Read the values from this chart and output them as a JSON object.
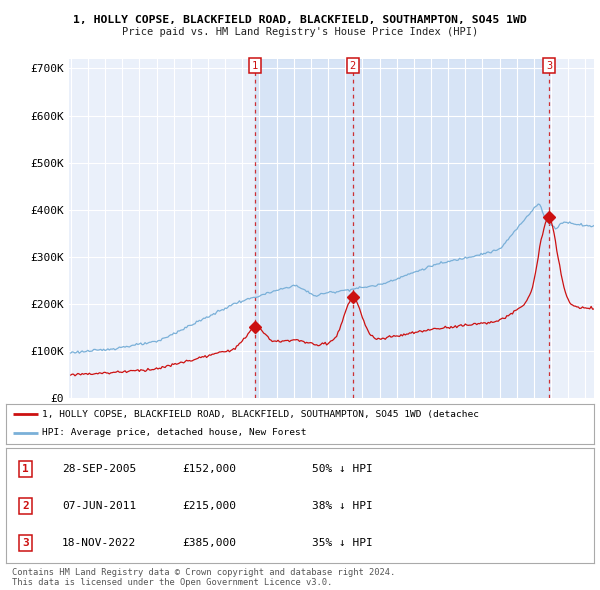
{
  "title1": "1, HOLLY COPSE, BLACKFIELD ROAD, BLACKFIELD, SOUTHAMPTON, SO45 1WD",
  "title2": "Price paid vs. HM Land Registry's House Price Index (HPI)",
  "ylim": [
    0,
    720000
  ],
  "yticks": [
    0,
    100000,
    200000,
    300000,
    400000,
    500000,
    600000,
    700000
  ],
  "ytick_labels": [
    "£0",
    "£100K",
    "£200K",
    "£300K",
    "£400K",
    "£500K",
    "£600K",
    "£700K"
  ],
  "background_color": "#ffffff",
  "plot_bg_color": "#eaf0fa",
  "grid_color": "#ffffff",
  "hpi_color": "#7ab0d8",
  "price_color": "#cc1111",
  "vline_color": "#cc1111",
  "shade_color": "#d0e0f5",
  "transactions": [
    {
      "date": 2005.75,
      "price": 152000,
      "label": "1"
    },
    {
      "date": 2011.44,
      "price": 215000,
      "label": "2"
    },
    {
      "date": 2022.88,
      "price": 385000,
      "label": "3"
    }
  ],
  "legend_text1": "1, HOLLY COPSE, BLACKFIELD ROAD, BLACKFIELD, SOUTHAMPTON, SO45 1WD (detachec",
  "legend_text2": "HPI: Average price, detached house, New Forest",
  "table_rows": [
    [
      "1",
      "28-SEP-2005",
      "£152,000",
      "50% ↓ HPI"
    ],
    [
      "2",
      "07-JUN-2011",
      "£215,000",
      "38% ↓ HPI"
    ],
    [
      "3",
      "18-NOV-2022",
      "£385,000",
      "35% ↓ HPI"
    ]
  ],
  "footer": "Contains HM Land Registry data © Crown copyright and database right 2024.\nThis data is licensed under the Open Government Licence v3.0.",
  "xmin": 1994.9,
  "xmax": 2025.5
}
